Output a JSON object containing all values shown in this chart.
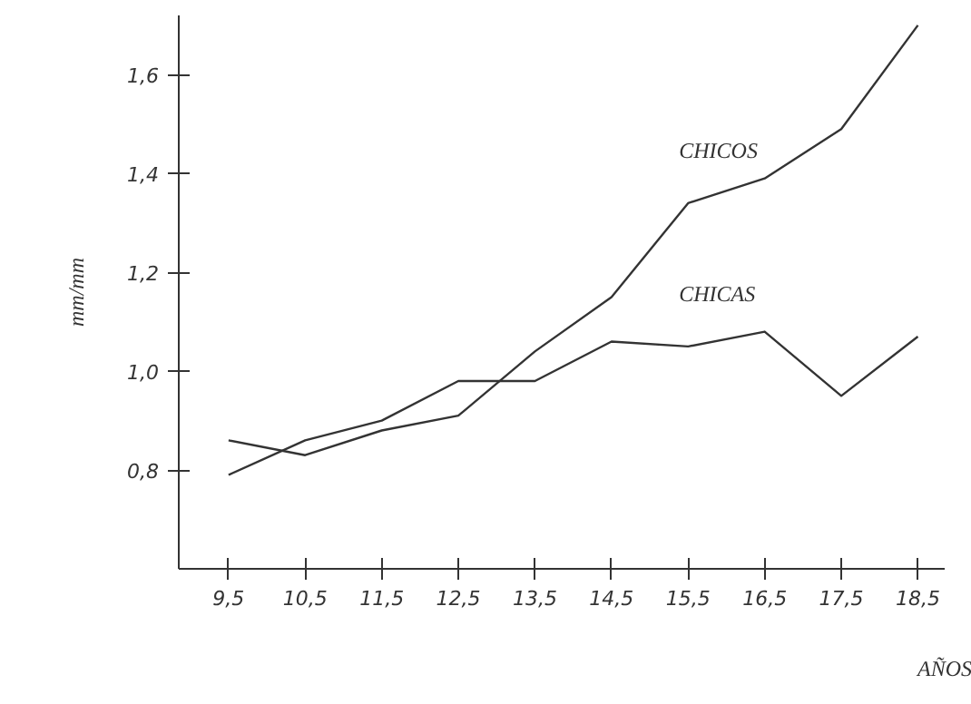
{
  "chart_data": {
    "type": "line",
    "xlabel": "AÑOS",
    "ylabel": "mm/mm",
    "x": [
      9.5,
      10.5,
      11.5,
      12.5,
      13.5,
      14.5,
      15.5,
      16.5,
      17.5,
      18.5
    ],
    "series": [
      {
        "name": "CHICOS",
        "color": "#333333",
        "values": [
          0.86,
          0.83,
          0.88,
          0.91,
          1.04,
          1.15,
          1.34,
          1.39,
          1.49,
          1.7
        ]
      },
      {
        "name": "CHICAS",
        "color": "#333333",
        "values": [
          0.79,
          0.86,
          0.9,
          0.98,
          0.98,
          1.06,
          1.05,
          1.08,
          0.95,
          1.07
        ]
      }
    ],
    "xlim": [
      8.85,
      18.85
    ],
    "ylim": [
      0.6,
      1.72
    ],
    "xticks": [
      {
        "value": 9.5,
        "label": "9,5"
      },
      {
        "value": 10.5,
        "label": "10,5"
      },
      {
        "value": 11.5,
        "label": "11,5"
      },
      {
        "value": 12.5,
        "label": "12,5"
      },
      {
        "value": 13.5,
        "label": "13,5"
      },
      {
        "value": 14.5,
        "label": "14,5"
      },
      {
        "value": 15.5,
        "label": "15,5"
      },
      {
        "value": 16.5,
        "label": "16,5"
      },
      {
        "value": 17.5,
        "label": "17,5"
      },
      {
        "value": 18.5,
        "label": "18,5"
      }
    ],
    "yticks": [
      {
        "value": 0.8,
        "label": "0,8"
      },
      {
        "value": 1.0,
        "label": "1,0"
      },
      {
        "value": 1.2,
        "label": "1,2"
      },
      {
        "value": 1.4,
        "label": "1,4"
      },
      {
        "value": 1.6,
        "label": "1,6"
      }
    ],
    "grid": false,
    "legend": false,
    "marker": "none",
    "line_style": "solid"
  }
}
